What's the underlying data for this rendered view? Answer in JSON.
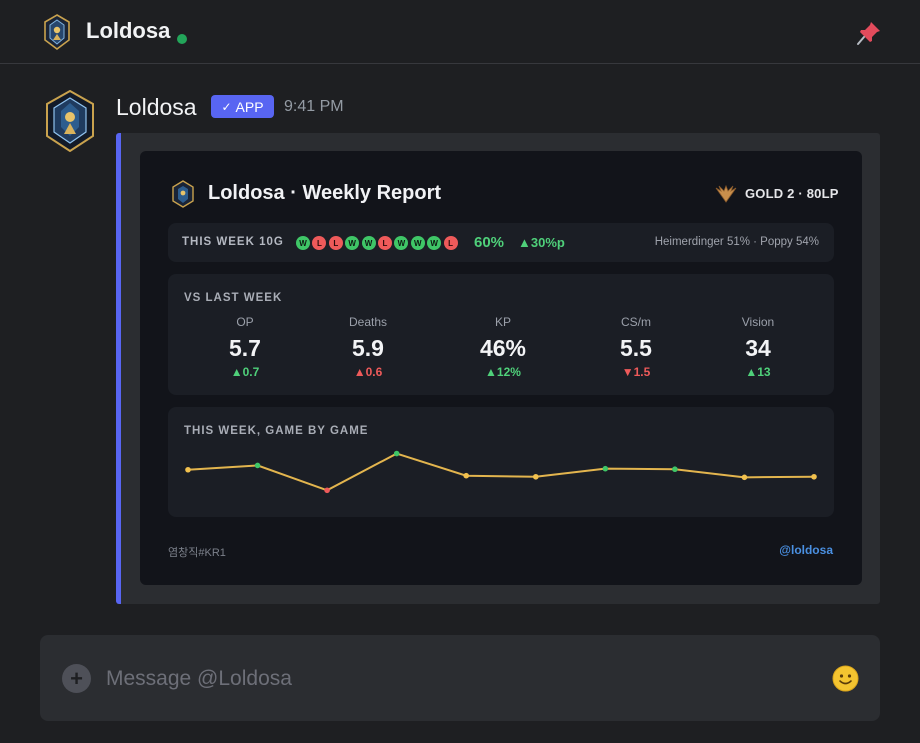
{
  "header": {
    "title": "Loldosa",
    "status": "online"
  },
  "message": {
    "author": "Loldosa",
    "badge": "APP",
    "time": "9:41 PM"
  },
  "report": {
    "title": "Loldosa · Weekly Report",
    "rank": "GOLD 2 · 80LP",
    "week": {
      "label": "THIS WEEK 10G",
      "results": [
        "W",
        "L",
        "L",
        "W",
        "W",
        "L",
        "W",
        "W",
        "W",
        "L"
      ],
      "winrate": "60%",
      "winrate_delta": "30%p",
      "champions": "Heimerdinger 51% · Poppy 54%"
    },
    "vs_last_week": {
      "label": "VS LAST WEEK",
      "stats": [
        {
          "label": "OP",
          "value": "5.7",
          "delta": "0.7",
          "direction": "up",
          "color": "#4fd07a"
        },
        {
          "label": "Deaths",
          "value": "5.9",
          "delta": "0.6",
          "direction": "up",
          "color": "#ee5a5a"
        },
        {
          "label": "KP",
          "value": "46%",
          "delta": "12%",
          "direction": "up",
          "color": "#4fd07a"
        },
        {
          "label": "CS/m",
          "value": "5.5",
          "delta": "1.5",
          "direction": "down",
          "color": "#ee5a5a"
        },
        {
          "label": "Vision",
          "value": "34",
          "delta": "13",
          "direction": "up",
          "color": "#4fd07a"
        }
      ]
    },
    "game_by_game": {
      "label": "THIS WEEK, GAME BY GAME"
    },
    "riot_id": "염창직#KR1",
    "handle": "@loldosa"
  },
  "chart_data": {
    "type": "line",
    "title": "THIS WEEK, GAME BY GAME",
    "x": [
      1,
      2,
      3,
      4,
      5,
      6,
      7,
      8,
      9,
      10
    ],
    "series": [
      {
        "values": [
          5.6,
          6.4,
          1.8,
          8.6,
          4.5,
          4.3,
          5.8,
          5.7,
          4.2,
          4.3
        ],
        "point_colors": [
          "#f2c14e",
          "#3fc667",
          "#ee5a5a",
          "#3fc667",
          "#f2c14e",
          "#f2c14e",
          "#3fc667",
          "#3fc667",
          "#f2c14e",
          "#f2c14e"
        ]
      }
    ],
    "line_color": "#e3b54e",
    "grid": false,
    "ylim": [
      0,
      10
    ]
  },
  "composer": {
    "placeholder": "Message @Loldosa"
  },
  "icons": {
    "header_avatar": "mage-emblem-icon",
    "pin": "pin-icon",
    "rank": "gold-wings-icon",
    "plus": "plus-icon",
    "emoji": "smiley-icon"
  }
}
